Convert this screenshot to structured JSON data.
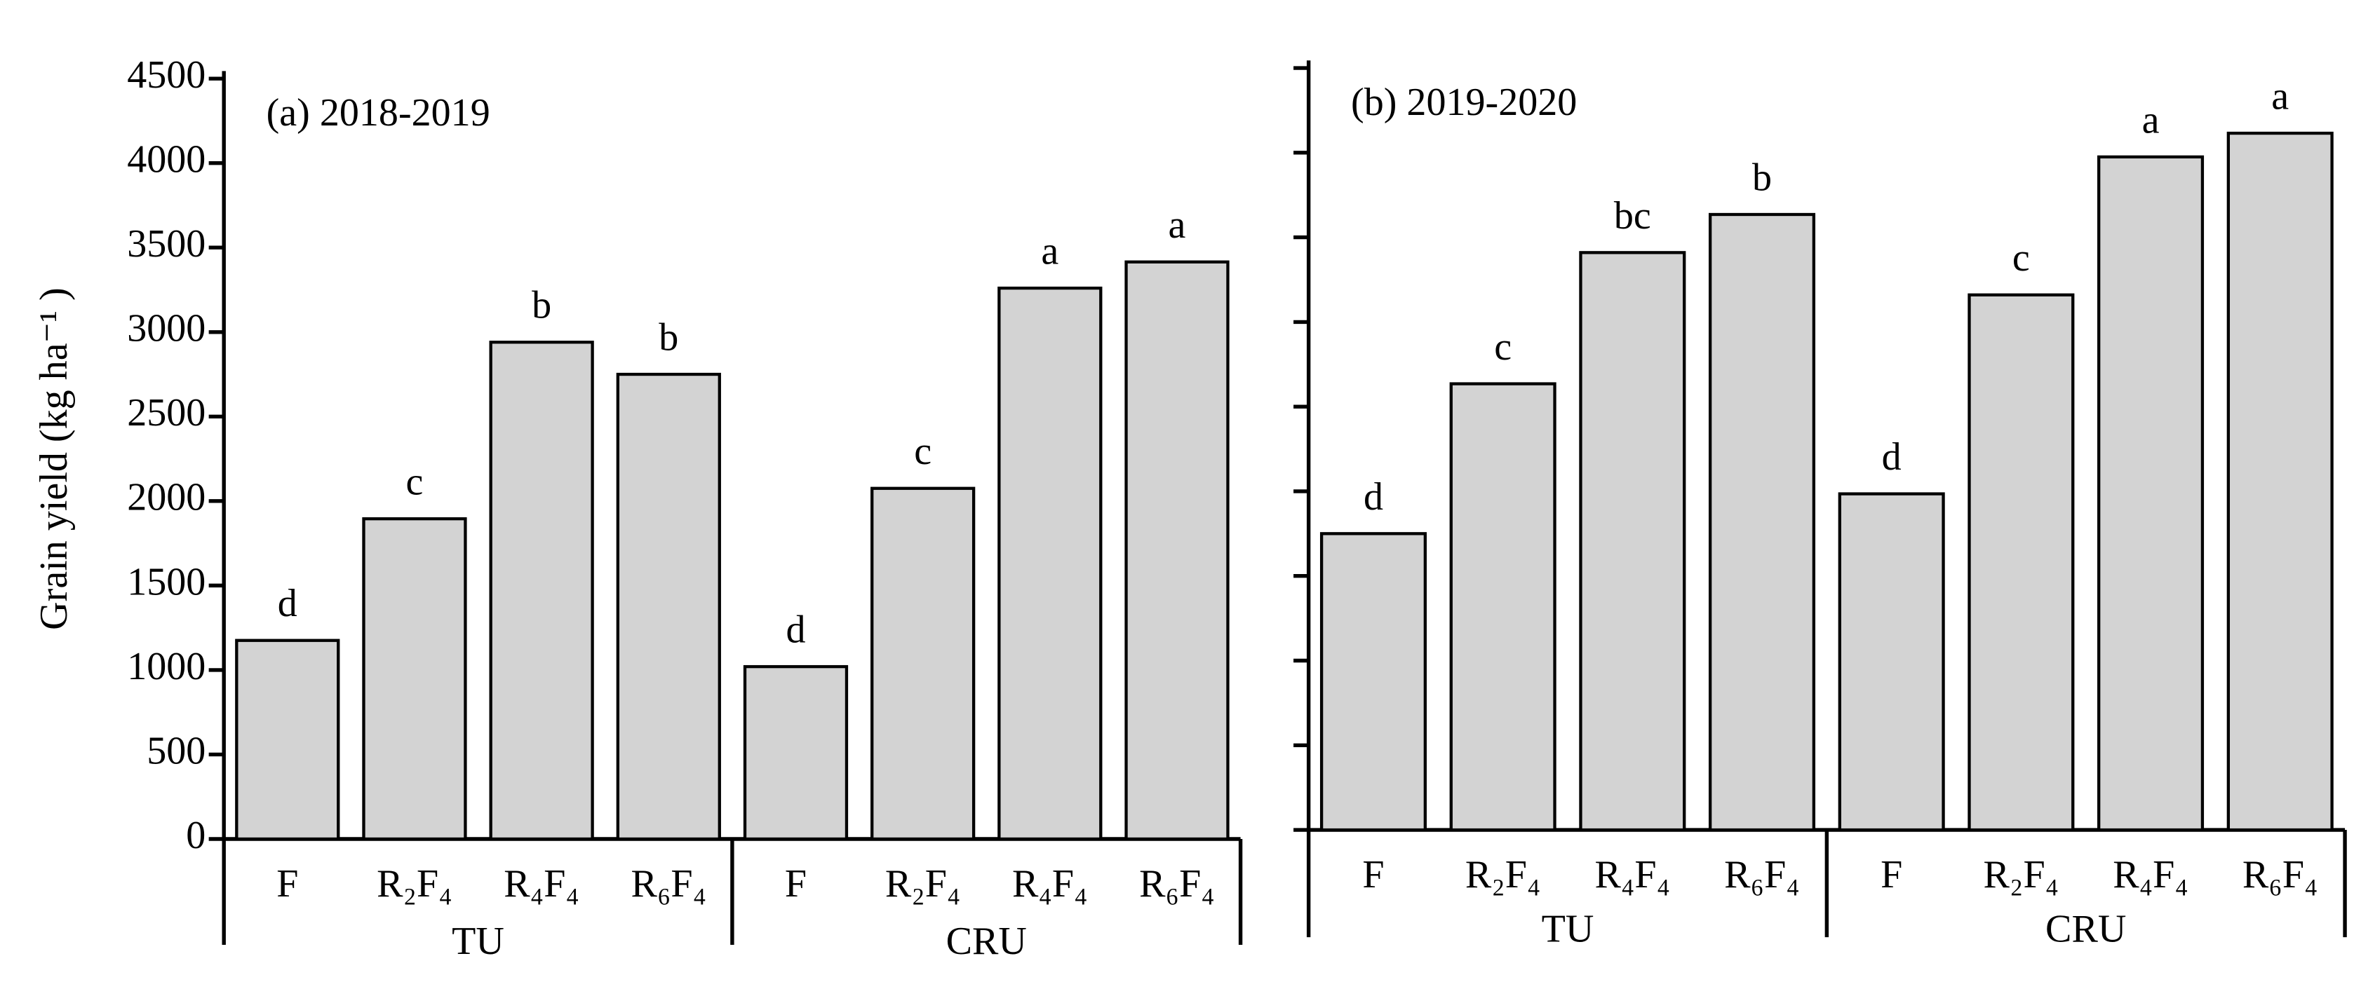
{
  "chart_data": [
    {
      "type": "bar",
      "title": "(a) 2018-2019",
      "y_label": "Grain yield (kg ha⁻¹ )",
      "ylim": [
        0,
        4500
      ],
      "yticks": [
        0,
        500,
        1000,
        1500,
        2000,
        2500,
        3000,
        3500,
        4000,
        4500
      ],
      "ytick_labels": true,
      "color": "#d3d3d3",
      "groups": [
        {
          "name": "TU",
          "categories": [
            "F",
            "R₂F₄",
            "R₄F₄",
            "R₆F₄"
          ],
          "values": [
            1175,
            1895,
            2940,
            2750
          ],
          "letters": [
            "d",
            "c",
            "b",
            "b"
          ]
        },
        {
          "name": "CRU",
          "categories": [
            "F",
            "R₂F₄",
            "R₄F₄",
            "R₆F₄"
          ],
          "values": [
            1020,
            2075,
            3260,
            3415
          ],
          "letters": [
            "d",
            "c",
            "a",
            "a"
          ]
        }
      ]
    },
    {
      "type": "bar",
      "title": "(b) 2019-2020",
      "ylim": [
        0,
        4500
      ],
      "yticks": [
        0,
        500,
        1000,
        1500,
        2000,
        2500,
        3000,
        3500,
        4000,
        4500
      ],
      "ytick_labels": false,
      "color": "#d3d3d3",
      "groups": [
        {
          "name": "TU",
          "categories": [
            "F",
            "R₂F₄",
            "R₄F₄",
            "R₆F₄"
          ],
          "values": [
            1750,
            2635,
            3410,
            3635
          ],
          "letters": [
            "d",
            "c",
            "bc",
            "b"
          ]
        },
        {
          "name": "CRU",
          "categories": [
            "F",
            "R₂F₄",
            "R₄F₄",
            "R₆F₄"
          ],
          "values": [
            1985,
            3160,
            3975,
            4115
          ],
          "letters": [
            "d",
            "c",
            "a",
            "a"
          ]
        }
      ]
    }
  ]
}
